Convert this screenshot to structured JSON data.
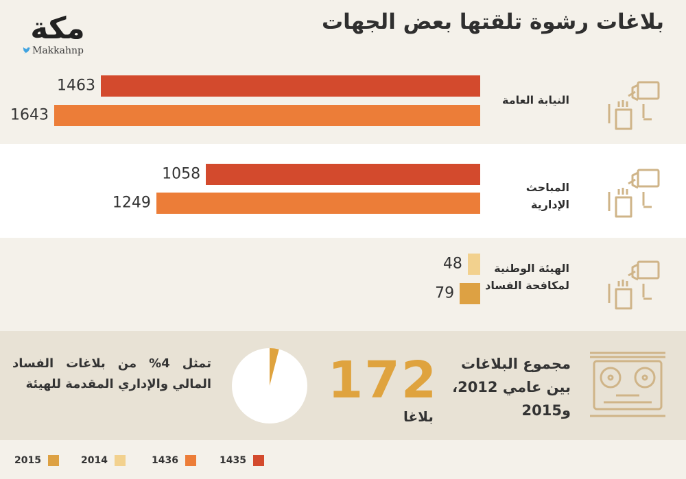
{
  "header": {
    "title": "بلاغات رشوة تلقتها بعض الجهات",
    "logo_text": "مكة",
    "twitter_handle": "Makkahnp"
  },
  "colors": {
    "1435": "#d34a2d",
    "1436": "#ec7d38",
    "2014": "#f2d18e",
    "2015": "#dda143",
    "gold": "#dfa33e",
    "icon": "#cfb488"
  },
  "chart_data": {
    "type": "bar",
    "orientation": "horizontal",
    "title": "بلاغات رشوة تلقتها بعض الجهات",
    "categories": [
      "النيابة العامة",
      "المباحث الإدارية",
      "الهيئة الوطنية لمكافحة الفساد"
    ],
    "category_lines": [
      [
        "النيابة العامة"
      ],
      [
        "المباحث",
        "الإدارية"
      ],
      [
        "الهيئة الوطنية",
        "لمكافحة الفساد"
      ]
    ],
    "rows": [
      {
        "category_index": 0,
        "series": "1435",
        "value": 1463
      },
      {
        "category_index": 0,
        "series": "1436",
        "value": 1643
      },
      {
        "category_index": 1,
        "series": "1435",
        "value": 1058
      },
      {
        "category_index": 1,
        "series": "1436",
        "value": 1249
      },
      {
        "category_index": 2,
        "series": "2014",
        "value": 48
      },
      {
        "category_index": 2,
        "series": "2015",
        "value": 79
      }
    ],
    "max_value": 1643,
    "legend": [
      "1435",
      "1436",
      "2014",
      "2015"
    ],
    "legend_position": "bottom"
  },
  "summary": {
    "label_lines": [
      "مجموع البلاغات",
      "بين عامي 2012،",
      "و2015"
    ],
    "number": "172",
    "unit": "بلاغا",
    "note": "تمثل 4% من بلاغات الفساد المالي والإداري المقدمة للهيئة",
    "percent": 4
  }
}
